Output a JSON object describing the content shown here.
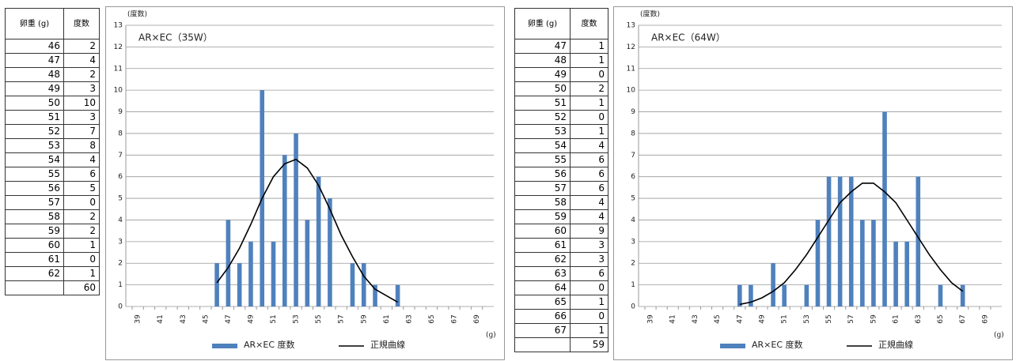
{
  "tables": [
    {
      "header": [
        "卵重 (g)",
        "度数"
      ],
      "rows": [
        [
          46,
          2
        ],
        [
          47,
          4
        ],
        [
          48,
          2
        ],
        [
          49,
          3
        ],
        [
          50,
          10
        ],
        [
          51,
          3
        ],
        [
          52,
          7
        ],
        [
          53,
          8
        ],
        [
          54,
          4
        ],
        [
          55,
          6
        ],
        [
          56,
          5
        ],
        [
          57,
          0
        ],
        [
          58,
          2
        ],
        [
          59,
          2
        ],
        [
          60,
          1
        ],
        [
          61,
          0
        ],
        [
          62,
          1
        ]
      ],
      "total": 60
    },
    {
      "header": [
        "卵重 (g)",
        "度数"
      ],
      "rows": [
        [
          47,
          1
        ],
        [
          48,
          1
        ],
        [
          49,
          0
        ],
        [
          50,
          2
        ],
        [
          51,
          1
        ],
        [
          52,
          0
        ],
        [
          53,
          1
        ],
        [
          54,
          4
        ],
        [
          55,
          6
        ],
        [
          56,
          6
        ],
        [
          57,
          6
        ],
        [
          58,
          4
        ],
        [
          59,
          4
        ],
        [
          60,
          9
        ],
        [
          61,
          3
        ],
        [
          62,
          3
        ],
        [
          63,
          6
        ],
        [
          64,
          0
        ],
        [
          65,
          1
        ],
        [
          66,
          0
        ],
        [
          67,
          1
        ]
      ],
      "total": 59
    }
  ],
  "chart_data": [
    {
      "type": "bar",
      "title": "AR×EC（35W）",
      "ylabel": "(度数)",
      "xlabel": "(g)",
      "categories": [
        39,
        null,
        41,
        null,
        43,
        null,
        45,
        null,
        47,
        null,
        49,
        null,
        51,
        null,
        53,
        null,
        55,
        null,
        57,
        null,
        59,
        null,
        61,
        null,
        63,
        null,
        65,
        null,
        67,
        null,
        69,
        null
      ],
      "series": [
        {
          "name": "AR×EC 度数",
          "color": "#4f81bd",
          "type": "bar",
          "values": [
            0,
            0,
            0,
            0,
            0,
            0,
            0,
            2,
            4,
            2,
            3,
            10,
            3,
            7,
            8,
            4,
            6,
            5,
            0,
            2,
            2,
            1,
            0,
            1,
            0,
            0,
            0,
            0,
            0,
            0,
            0,
            0
          ]
        },
        {
          "name": "正規曲線",
          "color": "#000000",
          "type": "line",
          "values": [
            null,
            null,
            null,
            null,
            null,
            null,
            null,
            1.1,
            1.8,
            2.7,
            3.8,
            5.0,
            6.0,
            6.6,
            6.8,
            6.4,
            5.6,
            4.5,
            3.3,
            2.3,
            1.4,
            0.8,
            0.5,
            0.2,
            null,
            null,
            null,
            null,
            null,
            null,
            null,
            null
          ]
        }
      ],
      "ylim": [
        0,
        13
      ],
      "yticks": [
        0,
        1,
        2,
        3,
        4,
        5,
        6,
        7,
        8,
        9,
        10,
        11,
        12,
        13
      ],
      "grid": true,
      "legend": "bottom"
    },
    {
      "type": "bar",
      "title": "AR×EC（64W）",
      "ylabel": "(度数)",
      "xlabel": "(g)",
      "categories": [
        39,
        null,
        41,
        null,
        43,
        null,
        45,
        null,
        47,
        null,
        49,
        null,
        51,
        null,
        53,
        null,
        55,
        null,
        57,
        null,
        59,
        null,
        61,
        null,
        63,
        null,
        65,
        null,
        67,
        null,
        69,
        null
      ],
      "series": [
        {
          "name": "AR×EC 度数",
          "color": "#4f81bd",
          "type": "bar",
          "values": [
            0,
            0,
            0,
            0,
            0,
            0,
            0,
            0,
            1,
            1,
            0,
            2,
            1,
            0,
            1,
            4,
            6,
            6,
            6,
            4,
            4,
            9,
            3,
            3,
            6,
            0,
            1,
            0,
            1,
            0,
            0,
            0
          ]
        },
        {
          "name": "正規曲線",
          "color": "#000000",
          "type": "line",
          "values": [
            null,
            null,
            null,
            null,
            null,
            null,
            null,
            null,
            0.1,
            0.2,
            0.4,
            0.7,
            1.1,
            1.7,
            2.4,
            3.2,
            4.0,
            4.8,
            5.3,
            5.7,
            5.7,
            5.3,
            4.8,
            4.0,
            3.2,
            2.4,
            1.7,
            1.1,
            0.7,
            null,
            null,
            null
          ]
        }
      ],
      "ylim": [
        0,
        13
      ],
      "yticks": [
        0,
        1,
        2,
        3,
        4,
        5,
        6,
        7,
        8,
        9,
        10,
        11,
        12,
        13
      ],
      "grid": true,
      "legend": "bottom"
    }
  ]
}
